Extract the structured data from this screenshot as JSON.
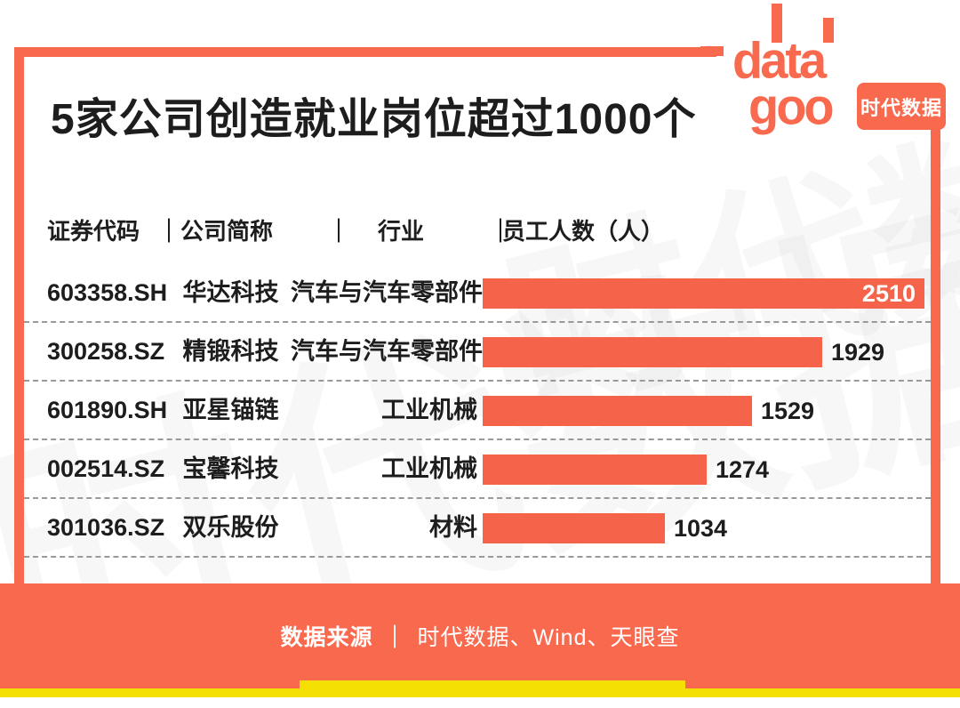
{
  "brand": {
    "logo_line1": "data",
    "logo_line2": "goo",
    "badge": "时代数据"
  },
  "colors": {
    "accent": "#F9694E",
    "bar": "#F5634A",
    "yellow": "#F3DF02",
    "text": "#1D1D1D"
  },
  "title": "5家公司创造就业岗位超过1000个",
  "table": {
    "separator": "｜",
    "headers": [
      "证券代码",
      "公司简称",
      "行业",
      "员工人数（人）"
    ],
    "rows": [
      {
        "code": "603358.SH",
        "company": "华达科技",
        "industry": "汽车与汽车零部件",
        "employees": 2510,
        "label_position": "inside"
      },
      {
        "code": "300258.SZ",
        "company": "精锻科技",
        "industry": "汽车与汽车零部件",
        "employees": 1929,
        "label_position": "outside"
      },
      {
        "code": "601890.SH",
        "company": "亚星锚链",
        "industry": "工业机械",
        "employees": 1529,
        "label_position": "outside"
      },
      {
        "code": "002514.SZ",
        "company": "宝馨科技",
        "industry": "工业机械",
        "employees": 1274,
        "label_position": "outside"
      },
      {
        "code": "301036.SZ",
        "company": "双乐股份",
        "industry": "材料",
        "employees": 1034,
        "label_position": "outside"
      }
    ]
  },
  "footer": {
    "source_label": "数据来源",
    "separator": "｜",
    "source_text": "时代数据、Wind、天眼查"
  },
  "chart_data": {
    "type": "bar",
    "orientation": "horizontal",
    "title": "5家公司创造就业岗位超过1000个",
    "categories": [
      "华达科技",
      "精锻科技",
      "亚星锚链",
      "宝馨科技",
      "双乐股份"
    ],
    "values": [
      2510,
      1929,
      1529,
      1274,
      1034
    ],
    "series_name": "员工人数（人）",
    "xlim": [
      0,
      2510
    ],
    "value_labels": true,
    "bar_color": "#F5634A",
    "grid": false,
    "legend": false
  }
}
